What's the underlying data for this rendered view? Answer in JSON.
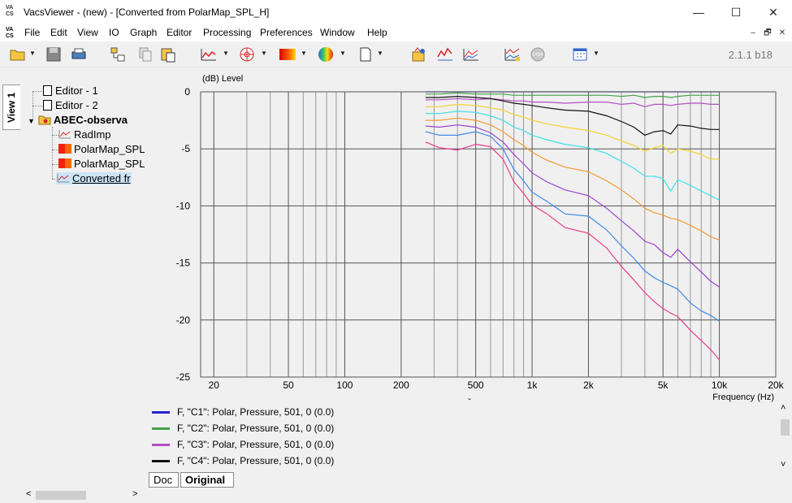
{
  "window": {
    "title": "VacsViewer - (new) - [Converted from PolarMap_SPL_H]",
    "minimize_glyph": "—",
    "maximize_glyph": "☐",
    "close_glyph": "✕",
    "logo_top": "VA",
    "logo_bottom": "CS"
  },
  "menu": {
    "items": [
      "File",
      "Edit",
      "View",
      "IO",
      "Graph",
      "Editor",
      "Processing",
      "Preferences",
      "Window",
      "Help"
    ],
    "mdi_min": "–",
    "mdi_restore": "🗗",
    "mdi_close": "✕"
  },
  "toolbar": {
    "version": "2.1.1 b18",
    "icons": [
      "open-folder-icon",
      "save-icon",
      "print-icon",
      "tree-props-icon",
      "copy-icon",
      "paste-icon",
      "line-graph-icon",
      "polar-graph-icon",
      "map-graph-icon",
      "balloon-graph-icon",
      "new-doc-icon",
      "run-icon",
      "yscale-icon",
      "overlay-graph-icon",
      "process-graph-icon",
      "stop-icon",
      "calendar-icon"
    ]
  },
  "sidebar": {
    "tab_label": "View 1",
    "tree": {
      "items": [
        {
          "label": "Editor - 1"
        },
        {
          "label": "Editor - 2"
        },
        {
          "label": "ABEC-observa"
        },
        {
          "label": "RadImp"
        },
        {
          "label": "PolarMap_SPL"
        },
        {
          "label": "PolarMap_SPL"
        },
        {
          "label": "Converted fr"
        }
      ]
    }
  },
  "chart_data": {
    "type": "line",
    "ylabel": "(dB)  Level",
    "xlabel": "Frequency  (Hz)",
    "xscale": "log",
    "xlim": [
      17,
      20000
    ],
    "ylim": [
      -25,
      0
    ],
    "grid": true,
    "xticks": [
      20,
      50,
      100,
      200,
      500,
      1000,
      2000,
      5000,
      10000,
      20000
    ],
    "xtick_labels": [
      "20",
      "50",
      "100",
      "200",
      "500",
      "1k",
      "2k",
      "5k",
      "10k",
      "20k"
    ],
    "yticks": [
      0,
      -5,
      -10,
      -15,
      -20,
      -25
    ],
    "x": [
      270,
      320,
      400,
      500,
      600,
      700,
      800,
      900,
      1000,
      1200,
      1500,
      2000,
      2500,
      3000,
      3500,
      4000,
      4500,
      5000,
      5500,
      6000,
      7000,
      8000,
      9000,
      10000
    ],
    "series": [
      {
        "name": "F, \"C1\": Polar, Pressure, 501, 0 (0.0)",
        "color": "#2222cc",
        "values": [
          0,
          0,
          0,
          0,
          0,
          0,
          0,
          0,
          0,
          0,
          0,
          0,
          0,
          0,
          0,
          0,
          0,
          0,
          0,
          0,
          0,
          0,
          0,
          0
        ]
      },
      {
        "name": "F, \"C2\": Polar, Pressure, 501, 0 (0.0)",
        "color": "#44a04a",
        "values": [
          -0.2,
          -0.2,
          -0.1,
          -0.2,
          -0.2,
          -0.2,
          -0.3,
          -0.3,
          -0.3,
          -0.3,
          -0.3,
          -0.3,
          -0.3,
          -0.4,
          -0.3,
          -0.5,
          -0.4,
          -0.4,
          -0.5,
          -0.4,
          -0.3,
          -0.3,
          -0.3,
          -0.3
        ]
      },
      {
        "name": "F, \"C3\": Polar, Pressure, 501, 0 (0.0)",
        "color": "#b050c0",
        "values": [
          -0.7,
          -0.7,
          -0.6,
          -0.7,
          -0.6,
          -0.7,
          -0.8,
          -0.8,
          -0.9,
          -0.9,
          -1.0,
          -0.9,
          -0.9,
          -1.1,
          -1.0,
          -1.3,
          -1.1,
          -1.1,
          -1.2,
          -1.1,
          -1.0,
          -1.0,
          -1.1,
          -1.1
        ]
      },
      {
        "name": "F, \"C4\": Polar, Pressure, 501, 0 (0.0)",
        "color": "#111111",
        "values": [
          -0.5,
          -0.5,
          -0.4,
          -0.5,
          -0.6,
          -0.8,
          -1.0,
          -1.1,
          -1.2,
          -1.4,
          -1.6,
          -1.7,
          -2.1,
          -2.6,
          -3.1,
          -3.8,
          -3.5,
          -3.4,
          -3.7,
          -2.9,
          -3.0,
          -3.2,
          -3.3,
          -3.3
        ]
      },
      {
        "name": "",
        "color": "#f6d22c",
        "values": [
          -1.3,
          -1.3,
          -1.1,
          -1.2,
          -1.4,
          -1.6,
          -2.0,
          -2.2,
          -2.5,
          -2.8,
          -3.1,
          -3.4,
          -3.8,
          -4.3,
          -4.7,
          -5.2,
          -4.9,
          -4.7,
          -5.4,
          -5.0,
          -5.2,
          -5.5,
          -5.9,
          -5.9
        ]
      },
      {
        "name": "",
        "color": "#40e0e8",
        "values": [
          -1.9,
          -1.9,
          -1.7,
          -1.8,
          -2.1,
          -2.5,
          -3.1,
          -3.4,
          -3.8,
          -4.2,
          -4.6,
          -4.9,
          -5.4,
          -6.1,
          -6.7,
          -7.4,
          -7.4,
          -7.6,
          -8.7,
          -7.7,
          -8.2,
          -8.7,
          -9.1,
          -9.5
        ]
      },
      {
        "name": "",
        "color": "#f49a30",
        "values": [
          -2.5,
          -2.5,
          -2.3,
          -2.5,
          -2.9,
          -3.5,
          -4.2,
          -4.7,
          -5.3,
          -6.0,
          -6.6,
          -7.0,
          -7.8,
          -8.6,
          -9.4,
          -10.2,
          -10.6,
          -10.8,
          -11.1,
          -11.2,
          -11.7,
          -12.2,
          -12.7,
          -13.0
        ]
      },
      {
        "name": "",
        "color": "#9c40cc",
        "values": [
          -3.0,
          -3.1,
          -2.9,
          -3.1,
          -3.6,
          -4.4,
          -5.5,
          -6.3,
          -7.1,
          -7.9,
          -8.6,
          -9.1,
          -10.2,
          -11.3,
          -12.2,
          -13.1,
          -13.4,
          -14.1,
          -14.5,
          -13.8,
          -14.9,
          -15.8,
          -16.6,
          -17.1
        ]
      },
      {
        "name": "",
        "color": "#3f88e8",
        "values": [
          -3.5,
          -3.8,
          -3.8,
          -3.5,
          -3.9,
          -5.0,
          -6.8,
          -7.8,
          -8.8,
          -9.6,
          -10.7,
          -10.9,
          -12.1,
          -13.5,
          -14.6,
          -15.7,
          -16.3,
          -16.7,
          -17.0,
          -17.3,
          -18.5,
          -19.2,
          -19.6,
          -20.1
        ]
      },
      {
        "name": "",
        "color": "#e83c8a",
        "values": [
          -4.4,
          -4.9,
          -5.1,
          -4.6,
          -4.8,
          -5.9,
          -7.9,
          -8.9,
          -9.9,
          -10.7,
          -11.9,
          -12.4,
          -13.7,
          -15.3,
          -16.5,
          -17.6,
          -18.4,
          -19.0,
          -19.4,
          -19.7,
          -20.9,
          -21.8,
          -22.6,
          -23.5
        ]
      }
    ]
  },
  "legend": {
    "entries": [
      {
        "label": "F, \"C1\": Polar, Pressure, 501, 0 (0.0)",
        "color": "#2222cc"
      },
      {
        "label": "F, \"C2\": Polar, Pressure, 501, 0 (0.0)",
        "color": "#44a04a"
      },
      {
        "label": "F, \"C3\": Polar, Pressure, 501, 0 (0.0)",
        "color": "#b050c0"
      },
      {
        "label": "F, \"C4\": Polar, Pressure, 501, 0 (0.0)",
        "color": "#111111"
      }
    ]
  },
  "bottom_tabs": {
    "doc": "Doc",
    "original": "Original"
  },
  "scroll": {
    "left_arrow": "<",
    "right_arrow": ">",
    "up_arrow": "˄",
    "down_arrow": "˅",
    "split_marker": "ˇ"
  }
}
